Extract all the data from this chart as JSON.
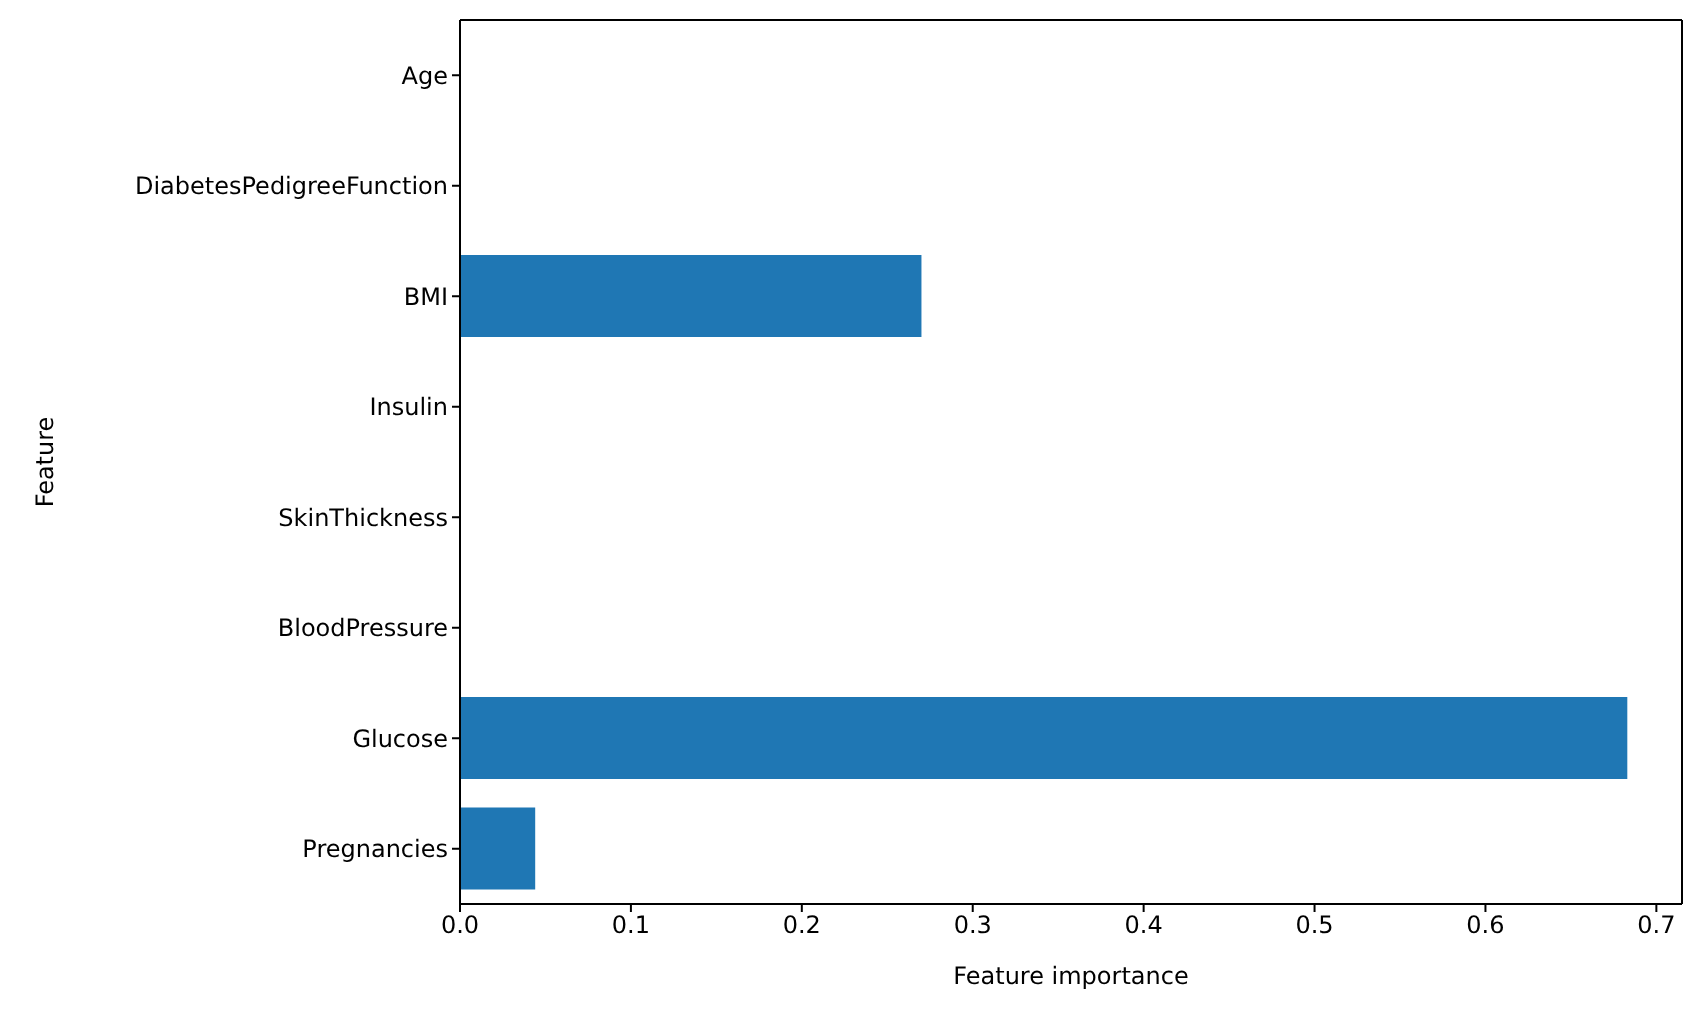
{
  "chart_data": {
    "type": "bar",
    "orientation": "horizontal",
    "xlabel": "Feature importance",
    "ylabel": "Feature",
    "categories": [
      "Age",
      "DiabetesPedigreeFunction",
      "BMI",
      "Insulin",
      "SkinThickness",
      "BloodPressure",
      "Glucose",
      "Pregnancies"
    ],
    "values": [
      0,
      0,
      0.27,
      0,
      0,
      0,
      0.683,
      0.044
    ],
    "color": "#1f77b4",
    "xlim": [
      0,
      0.715
    ],
    "xticks": [
      {
        "value": 0,
        "label": "0.0"
      },
      0.1,
      0.2,
      0.3,
      0.4,
      0.5,
      0.6,
      0.7
    ]
  }
}
